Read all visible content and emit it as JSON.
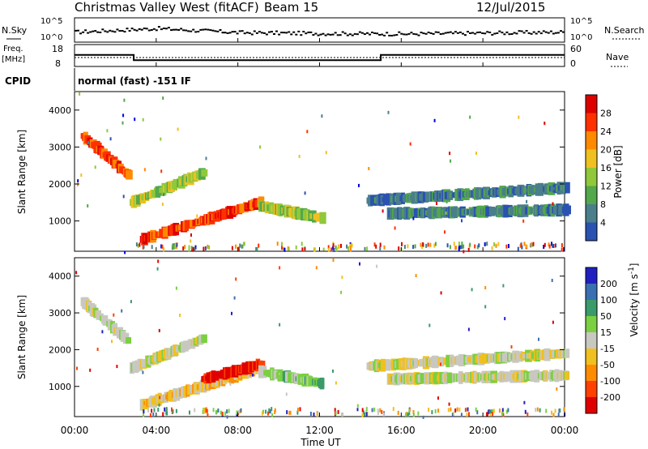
{
  "header": {
    "title": "Christmas Valley West (fitACF)",
    "beam": "Beam 15",
    "date": "12/Jul/2015"
  },
  "status_panels": {
    "nsky_label": "N.Sky",
    "nsky_ticks": [
      "10^5",
      "10^0"
    ],
    "nsearch_label": "N.Search",
    "nsearch_ticks": [
      "10^5",
      "10^0"
    ],
    "freq_label": [
      "Freq.",
      "[MHz]"
    ],
    "freq_ticks": [
      "18",
      "8"
    ],
    "nave_label": "Nave",
    "nave_ticks": [
      "60",
      "0"
    ],
    "cpid_label": "CPID",
    "cpid_value": "normal (fast) -151 IF"
  },
  "time_axis": {
    "label": "Time UT",
    "ticks": [
      "00:00",
      "04:00",
      "08:00",
      "12:00",
      "16:00",
      "20:00",
      "00:00"
    ]
  },
  "colors": {
    "power": [
      "#0000dd",
      "#2a52b0",
      "#4a7e8a",
      "#52a84a",
      "#90c83a",
      "#f0c020",
      "#ff8a00",
      "#ff3000",
      "#dd0000"
    ],
    "velocity": [
      "#2020c0",
      "#3a70b0",
      "#3a9a6a",
      "#7ad040",
      "#c8c8c0",
      "#f0c020",
      "#ff8c00",
      "#ff4000",
      "#e00000"
    ]
  },
  "chart_data": [
    {
      "type": "line",
      "title": "N.Sky / N.Search",
      "x": [
        0,
        4,
        8,
        12,
        16,
        20,
        24
      ],
      "series": [
        {
          "name": "N.Sky",
          "values": [
            2.2,
            3.0,
            2.1,
            1.9,
            1.8,
            2.0,
            2.2
          ]
        }
      ],
      "ylim": [
        0,
        5
      ],
      "xlim": [
        0,
        24
      ]
    },
    {
      "type": "line",
      "title": "Freq / Nave",
      "x": [
        0,
        2.9,
        2.9,
        15.0,
        15.0,
        24
      ],
      "series": [
        {
          "name": "Freq.",
          "values": [
            13.3,
            13.3,
            10.7,
            10.7,
            13.3,
            13.3
          ]
        },
        {
          "name": "Nave",
          "values": [
            12,
            12,
            12,
            12,
            12,
            12
          ]
        }
      ],
      "ylim": [
        8,
        18
      ],
      "xlim": [
        0,
        24
      ]
    },
    {
      "type": "heatmap",
      "title": "",
      "xlabel": "Time UT",
      "ylabel": "Slant Range [km]",
      "y_ticks": [
        1000,
        2000,
        3000,
        4000
      ],
      "ylim": [
        180,
        4500
      ],
      "xlim": [
        0,
        24
      ],
      "colorbar_label": "Power [dB]",
      "colorbar_ticks": [
        4,
        8,
        12,
        16,
        20,
        24,
        28
      ],
      "features": [
        {
          "start_h": 0.3,
          "end_h": 2.5,
          "start_km": 3300,
          "end_km": 2250,
          "color_index": 7
        },
        {
          "start_h": 2.7,
          "end_h": 6.2,
          "start_km": 1500,
          "end_km": 2300,
          "color_index": 4
        },
        {
          "start_h": 3.2,
          "end_h": 9.0,
          "start_km": 500,
          "end_km": 1500,
          "color_index": 7
        },
        {
          "start_h": 9.0,
          "end_h": 12.0,
          "start_km": 1400,
          "end_km": 1080,
          "color_index": 4
        },
        {
          "start_h": 14.3,
          "end_h": 24,
          "start_km": 1550,
          "end_km": 1900,
          "color_index": 2
        },
        {
          "start_h": 15.3,
          "end_h": 24,
          "start_km": 1200,
          "end_km": 1300,
          "color_index": 2
        }
      ]
    },
    {
      "type": "heatmap",
      "title": "",
      "xlabel": "Time UT",
      "ylabel": "Slant Range [km]",
      "y_ticks": [
        1000,
        2000,
        3000,
        4000
      ],
      "ylim": [
        180,
        4500
      ],
      "xlim": [
        0,
        24
      ],
      "colorbar_label": "Velocity [m s^-1]",
      "colorbar_ticks": [
        200,
        100,
        50,
        15,
        -15,
        -50,
        -100,
        -200
      ],
      "features": [
        {
          "start_h": 0.3,
          "end_h": 2.5,
          "start_km": 3300,
          "end_km": 2250,
          "color_index": 4
        },
        {
          "start_h": 2.7,
          "end_h": 6.2,
          "start_km": 1500,
          "end_km": 2300,
          "color_index": 4
        },
        {
          "start_h": 3.2,
          "end_h": 9.0,
          "start_km": 500,
          "end_km": 1500,
          "color_index": 5
        },
        {
          "start_h": 6.2,
          "end_h": 9.0,
          "start_km": 1200,
          "end_km": 1600,
          "color_index": 8
        },
        {
          "start_h": 9.0,
          "end_h": 12.0,
          "start_km": 1400,
          "end_km": 1080,
          "color_index": 3
        },
        {
          "start_h": 14.3,
          "end_h": 24,
          "start_km": 1550,
          "end_km": 1900,
          "color_index": 4
        },
        {
          "start_h": 15.3,
          "end_h": 24,
          "start_km": 1200,
          "end_km": 1300,
          "color_index": 4
        }
      ]
    }
  ]
}
